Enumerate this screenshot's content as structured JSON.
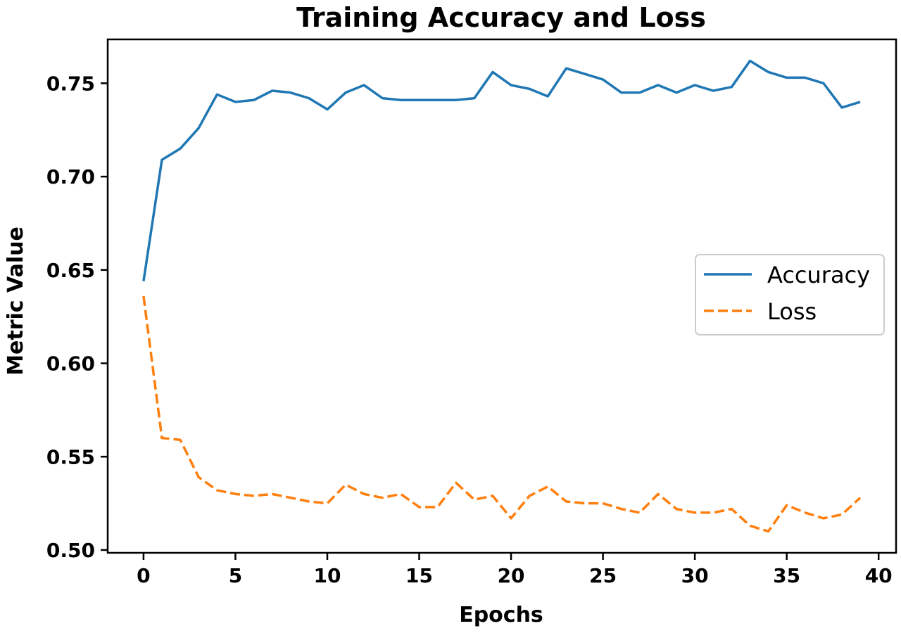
{
  "chart_data": {
    "type": "line",
    "title": "Training Accuracy and Loss",
    "xlabel": "Epochs",
    "ylabel": "Metric Value",
    "xlim": [
      -1.95,
      40.95
    ],
    "ylim": [
      0.4985,
      0.7735
    ],
    "xticks": [
      0,
      5,
      10,
      15,
      20,
      25,
      30,
      35,
      40
    ],
    "xtick_labels": [
      "0",
      "5",
      "10",
      "15",
      "20",
      "25",
      "30",
      "35",
      "40"
    ],
    "yticks": [
      0.5,
      0.55,
      0.6,
      0.65,
      0.7,
      0.75
    ],
    "ytick_labels": [
      "0.50",
      "0.55",
      "0.60",
      "0.65",
      "0.70",
      "0.75"
    ],
    "grid": false,
    "legend": "center-right",
    "x": [
      0,
      1,
      2,
      3,
      4,
      5,
      6,
      7,
      8,
      9,
      10,
      11,
      12,
      13,
      14,
      15,
      16,
      17,
      18,
      19,
      20,
      21,
      22,
      23,
      24,
      25,
      26,
      27,
      28,
      29,
      30,
      31,
      32,
      33,
      34,
      35,
      36,
      37,
      38,
      39
    ],
    "series": [
      {
        "name": "Accuracy",
        "color": "#1f77b4",
        "style": "solid",
        "values": [
          0.644,
          0.709,
          0.715,
          0.726,
          0.744,
          0.74,
          0.741,
          0.746,
          0.745,
          0.742,
          0.736,
          0.745,
          0.749,
          0.742,
          0.741,
          0.741,
          0.741,
          0.741,
          0.742,
          0.756,
          0.749,
          0.747,
          0.743,
          0.758,
          0.755,
          0.752,
          0.745,
          0.745,
          0.749,
          0.745,
          0.749,
          0.746,
          0.748,
          0.762,
          0.756,
          0.753,
          0.753,
          0.75,
          0.737,
          0.74
        ]
      },
      {
        "name": "Loss",
        "color": "#ff7f0e",
        "style": "dashed",
        "values": [
          0.636,
          0.56,
          0.559,
          0.539,
          0.532,
          0.53,
          0.529,
          0.53,
          0.528,
          0.526,
          0.525,
          0.535,
          0.53,
          0.528,
          0.53,
          0.523,
          0.523,
          0.536,
          0.527,
          0.529,
          0.517,
          0.529,
          0.534,
          0.526,
          0.525,
          0.525,
          0.522,
          0.52,
          0.53,
          0.522,
          0.52,
          0.52,
          0.522,
          0.513,
          0.51,
          0.524,
          0.52,
          0.517,
          0.519,
          0.528
        ]
      }
    ]
  }
}
